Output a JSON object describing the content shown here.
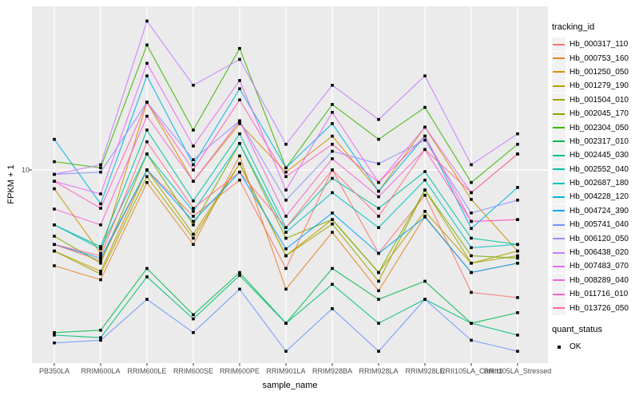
{
  "figure": {
    "y_axis": {
      "title": "FPKM + 1",
      "tick_label": "10"
    },
    "x_axis": {
      "title": "sample_name"
    },
    "panel_bg": "#EBEBEB",
    "grid_color": "#FFFFFF",
    "axis_text_color": "#4D4D4D",
    "point_color": "#000000"
  },
  "legend": {
    "tracking_title": "tracking_id",
    "quant_title": "quant_status",
    "quant_items": [
      {
        "label": "OK"
      }
    ]
  },
  "chart_data": {
    "type": "line",
    "xlabel": "sample_name",
    "ylabel": "FPKM + 1",
    "y_scale": "log10",
    "y_breaks": [
      10
    ],
    "y_range_approx": [
      1.6,
      45
    ],
    "grid": "major",
    "legend_position": "right",
    "point_marker": "black-square (quant_status = OK at every point)",
    "categories": [
      "PB350LA",
      "RRIM600LA",
      "RRIM600LE",
      "RRIM600SE",
      "RRIM600PE",
      "RRIM901LA",
      "RRIM928BA",
      "RRIM928LA",
      "RRIM928LE",
      "RRII105LA_Control",
      "RRII105LA_Stressed"
    ],
    "series": [
      {
        "name": "Hb_000317_110",
        "color": "#F8766D",
        "values": [
          5.0,
          4.3,
          10.0,
          6.5,
          9.1,
          4.0,
          10.0,
          4.6,
          7.9,
          3.2,
          3.05
        ]
      },
      {
        "name": "Hb_000753_160",
        "color": "#E88526",
        "values": [
          4.1,
          3.6,
          8.9,
          5.0,
          11.4,
          3.3,
          5.6,
          3.25,
          6.5,
          3.85,
          4.2
        ]
      },
      {
        "name": "Hb_001250_050",
        "color": "#D39200",
        "values": [
          8.4,
          4.6,
          18.8,
          9.0,
          15.4,
          9.8,
          13.7,
          8.2,
          14.9,
          7.6,
          4.7
        ]
      },
      {
        "name": "Hb_001279_190",
        "color": "#B79F00",
        "values": [
          4.7,
          3.9,
          10.0,
          5.5,
          10.6,
          4.5,
          6.3,
          3.85,
          6.8,
          4.2,
          4.7
        ]
      },
      {
        "name": "Hb_001504_010",
        "color": "#A3A500",
        "values": [
          4.7,
          3.8,
          9.4,
          5.3,
          10.6,
          4.5,
          6.05,
          3.55,
          8.3,
          4.2,
          4.5
        ]
      },
      {
        "name": "Hb_002045_170",
        "color": "#7CAE00",
        "values": [
          5.4,
          4.2,
          11.6,
          6.0,
          12.8,
          5.3,
          6.3,
          3.85,
          8.3,
          4.5,
          4.4
        ]
      },
      {
        "name": "Hb_002304_050",
        "color": "#39B600",
        "values": [
          10.8,
          10.2,
          32.0,
          14.5,
          31.0,
          10.2,
          18.4,
          13.3,
          17.9,
          8.9,
          12.7
        ]
      },
      {
        "name": "Hb_002317_010",
        "color": "#00BB4E",
        "values": [
          2.2,
          2.25,
          4.0,
          2.6,
          3.85,
          2.4,
          4.0,
          3.0,
          3.55,
          2.4,
          2.65
        ]
      },
      {
        "name": "Hb_002445_030",
        "color": "#00BF7D",
        "values": [
          2.15,
          2.1,
          3.7,
          2.5,
          3.75,
          2.4,
          3.45,
          2.4,
          3.0,
          2.4,
          2.15
        ]
      },
      {
        "name": "Hb_002552_040",
        "color": "#00C1A3",
        "values": [
          6.0,
          4.9,
          14.5,
          7.5,
          14.0,
          5.85,
          9.25,
          7.0,
          9.85,
          5.3,
          5.0
        ]
      },
      {
        "name": "Hb_002687_180",
        "color": "#00BFC4",
        "values": [
          6.0,
          4.8,
          11.6,
          6.8,
          12.8,
          5.6,
          8.1,
          5.85,
          9.1,
          4.85,
          5.0
        ]
      },
      {
        "name": "Hb_004228_120",
        "color": "#00B4E8",
        "values": [
          13.3,
          7.3,
          24.0,
          10.5,
          21.3,
          10.2,
          15.4,
          8.2,
          13.7,
          5.8,
          8.5
        ]
      },
      {
        "name": "Hb_004724_390",
        "color": "#00A5FF",
        "values": [
          5.0,
          4.4,
          10.0,
          6.2,
          9.8,
          4.8,
          6.7,
          4.6,
          6.45,
          3.85,
          4.2
        ]
      },
      {
        "name": "Hb_005741_040",
        "color": "#6F94FF",
        "values": [
          2.0,
          2.05,
          3.0,
          2.2,
          3.3,
          1.85,
          2.75,
          1.85,
          3.0,
          2.05,
          1.85
        ]
      },
      {
        "name": "Hb_006120_050",
        "color": "#9590FF",
        "values": [
          9.6,
          9.8,
          18.8,
          11.0,
          15.8,
          7.55,
          11.9,
          10.6,
          13.2,
          6.7,
          7.55
        ]
      },
      {
        "name": "Hb_006438_020",
        "color": "#C77CFF",
        "values": [
          9.6,
          10.5,
          40.0,
          22.0,
          28.0,
          12.7,
          22.0,
          16.0,
          24.0,
          10.5,
          14.0
        ]
      },
      {
        "name": "Hb_007483_070",
        "color": "#E76BF3",
        "values": [
          9.0,
          8.0,
          27.0,
          12.5,
          23.0,
          8.3,
          17.1,
          8.9,
          14.9,
          8.1,
          11.6
        ]
      },
      {
        "name": "Hb_008289_040",
        "color": "#F564D4",
        "values": [
          6.95,
          6.0,
          16.5,
          9.0,
          15.8,
          6.5,
          11.1,
          7.8,
          12.1,
          6.2,
          6.3
        ]
      },
      {
        "name": "Hb_011716_010",
        "color": "#FF61C3",
        "values": [
          9.0,
          7.0,
          18.8,
          10.0,
          19.2,
          9.4,
          12.7,
          8.9,
          13.7,
          6.2,
          6.3
        ]
      },
      {
        "name": "Hb_013726_050",
        "color": "#FF6E91",
        "values": [
          5.0,
          4.5,
          13.0,
          7.0,
          9.8,
          5.85,
          10.0,
          6.5,
          12.1,
          8.1,
          11.6
        ]
      }
    ]
  }
}
